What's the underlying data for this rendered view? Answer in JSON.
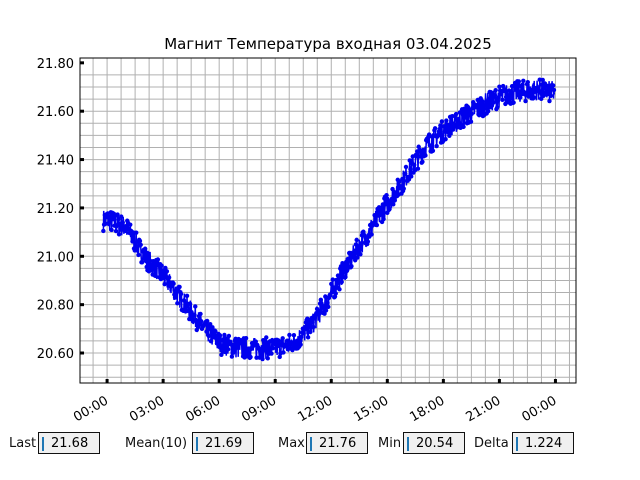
{
  "chart_data": {
    "type": "scatter",
    "title": "Магнит Температура входная 03.04.2025",
    "xlabel": "",
    "ylabel": "",
    "xlim_hours": [
      -1.45,
      25.1
    ],
    "ylim": [
      20.476,
      21.82
    ],
    "grid": true,
    "color": "#0000ee",
    "x_tick_labels": [
      "00:00",
      "03:00",
      "06:00",
      "09:00",
      "12:00",
      "15:00",
      "18:00",
      "21:00",
      "00:00"
    ],
    "y_tick_labels": [
      "20.60",
      "20.80",
      "21.00",
      "21.20",
      "21.40",
      "21.60",
      "21.80"
    ],
    "y_ticks": [
      20.6,
      20.8,
      21.0,
      21.2,
      21.4,
      21.6,
      21.8
    ],
    "series": [
      {
        "x_hours": [
          0,
          1,
          2,
          3,
          4,
          5,
          6,
          7,
          8,
          9,
          10,
          11,
          12,
          13,
          14,
          15,
          16,
          17,
          18,
          19,
          20,
          21,
          22,
          23,
          23.75
        ],
        "values": [
          21.15,
          21.12,
          21.0,
          20.92,
          20.82,
          20.72,
          20.64,
          20.62,
          20.62,
          20.62,
          20.64,
          20.72,
          20.85,
          20.98,
          21.1,
          21.22,
          21.33,
          21.45,
          21.52,
          21.57,
          21.62,
          21.66,
          21.68,
          21.69,
          21.68
        ]
      }
    ]
  },
  "stats": [
    {
      "label": "Last",
      "value": "21.68"
    },
    {
      "label": "Mean(10)",
      "value": "21.69"
    },
    {
      "label": "Max",
      "value": "21.76"
    },
    {
      "label": "Min",
      "value": "20.54"
    },
    {
      "label": "Delta",
      "value": "1.224"
    }
  ]
}
